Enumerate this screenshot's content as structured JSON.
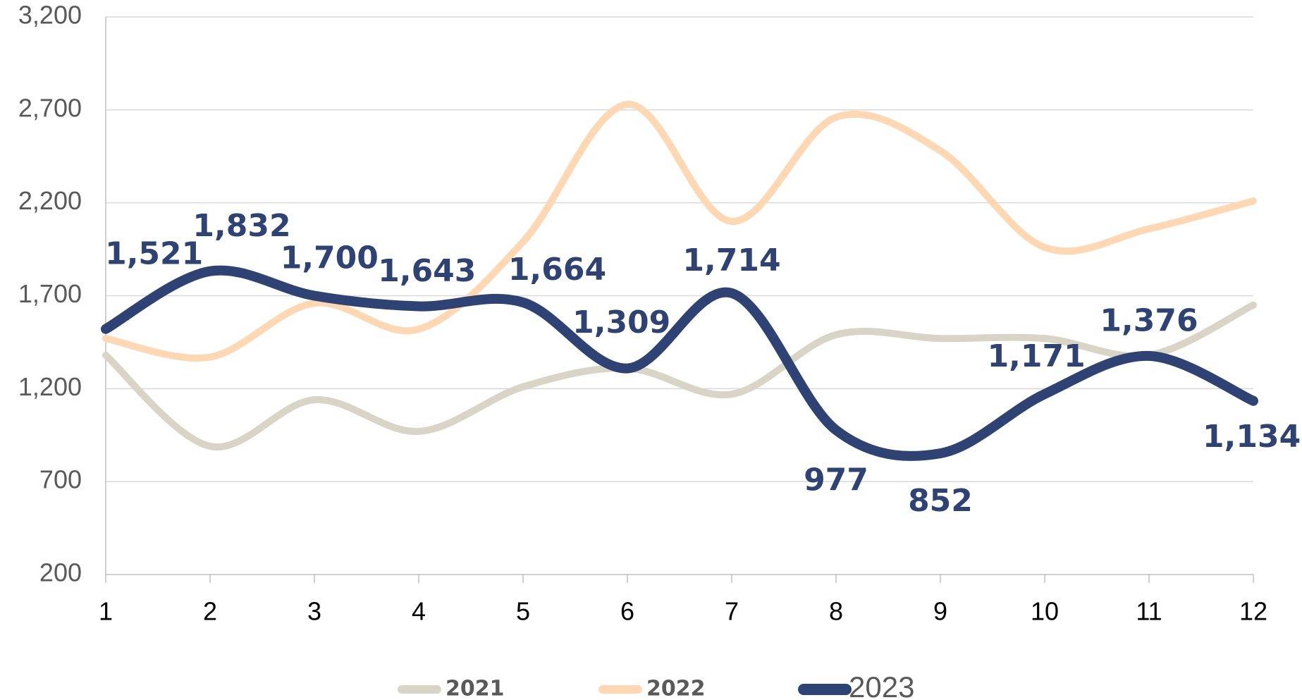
{
  "chart_data": {
    "type": "line",
    "x": [
      1,
      2,
      3,
      4,
      5,
      6,
      7,
      8,
      9,
      10,
      11,
      12
    ],
    "xlim": [
      1,
      12
    ],
    "xticks": [
      1,
      2,
      3,
      4,
      5,
      6,
      7,
      8,
      9,
      10,
      11,
      12
    ],
    "ylim": [
      200,
      3200
    ],
    "yticks": [
      200,
      700,
      {
        "value": 1200,
        "label": "1,200"
      },
      {
        "value": 1700,
        "label": "1,700"
      },
      {
        "value": 2200,
        "label": "2,200"
      },
      {
        "value": 2700,
        "label": "2,700"
      },
      {
        "value": 3200,
        "label": "3,200"
      }
    ],
    "grid": true,
    "legend": "bottom",
    "series": [
      {
        "name": "2021",
        "color": "#d9d5c6",
        "values": [
          1380,
          890,
          1140,
          970,
          1210,
          1310,
          1170,
          1490,
          1470,
          1470,
          1380,
          1650
        ]
      },
      {
        "name": "2022",
        "color": "#fdd8b3",
        "values": [
          1470,
          1370,
          1660,
          1520,
          1990,
          2730,
          2100,
          2660,
          2480,
          1960,
          2060,
          2210
        ]
      },
      {
        "name": "2023",
        "color": "#2e4374",
        "values": [
          1521,
          1832,
          1700,
          1643,
          1664,
          1309,
          1714,
          977,
          852,
          1171,
          1376,
          1134
        ],
        "value_labels": [
          "1,521",
          "1,832",
          "1,700",
          "1,643",
          "1,664",
          "1,309",
          "1,714",
          "977",
          "852",
          "1,171",
          "1,376",
          "1,134"
        ]
      }
    ]
  }
}
